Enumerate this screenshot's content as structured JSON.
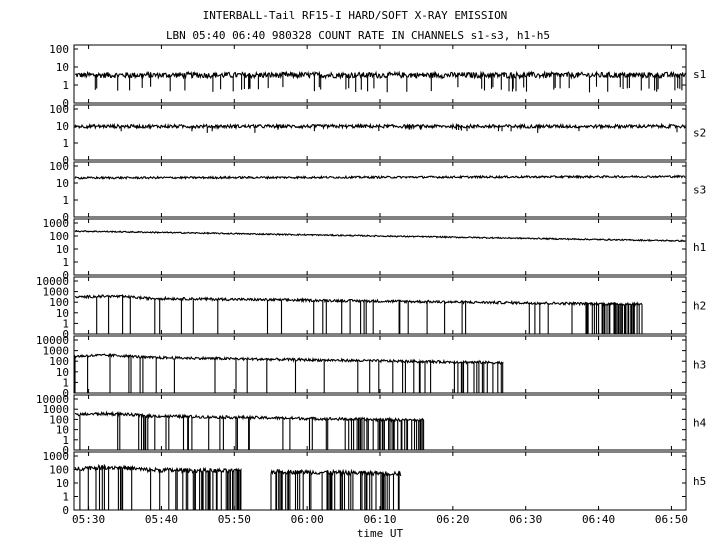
{
  "chart_data": {
    "type": "line",
    "title": "INTERBALL-Tail RF15-I HARD/SOFT X-RAY EMISSION",
    "subtitle": "LBN 05:40 06:40 980328  COUNT RATE IN CHANNELS s1-s3, h1-h5",
    "xlabel": "time UT",
    "x_ticks": [
      "05:30",
      "05:40",
      "05:50",
      "06:00",
      "06:10",
      "06:20",
      "06:30",
      "06:40",
      "06:50"
    ],
    "x_range_min": [
      328,
      412
    ],
    "y_scale": "log",
    "panels": [
      {
        "name": "s1",
        "y_ticks": [
          "100",
          "10",
          "1",
          "0"
        ],
        "y_decades": 2,
        "base_log": 0.55,
        "trend": [
          0.55,
          0.55
        ],
        "noise": 0.16,
        "spike_prob": 0.05,
        "spike_depth": 0.8,
        "end_min": 412,
        "gap": null,
        "dropout_from": null
      },
      {
        "name": "s2",
        "y_ticks": [
          "100",
          "10",
          "1",
          "0"
        ],
        "y_decades": 2,
        "base_log": 0.98,
        "trend": [
          0.98,
          0.98
        ],
        "noise": 0.1,
        "spike_prob": 0.02,
        "spike_depth": 0.3,
        "end_min": 412,
        "gap": null,
        "dropout_from": null
      },
      {
        "name": "s3",
        "y_ticks": [
          "100",
          "10",
          "1",
          "0"
        ],
        "y_decades": 2,
        "base_log": 1.3,
        "trend": [
          1.3,
          1.38
        ],
        "noise": 0.06,
        "spike_prob": 0.0,
        "spike_depth": 0,
        "end_min": 412,
        "gap": null,
        "dropout_from": null
      },
      {
        "name": "h1",
        "y_ticks": [
          "1000",
          "100",
          "10",
          "1",
          "0"
        ],
        "y_decades": 3,
        "base_log": 2.4,
        "trend": [
          2.38,
          1.62
        ],
        "noise": 0.05,
        "spike_prob": 0.0,
        "spike_depth": 0,
        "end_min": 412,
        "gap": null,
        "dropout_from": null
      },
      {
        "name": "h2",
        "y_ticks": [
          "10000",
          "1000",
          "100",
          "10",
          "1",
          "0"
        ],
        "y_decades": 4,
        "base_log": 2.5,
        "trend": [
          2.45,
          1.75
        ],
        "noise": 0.12,
        "spike_prob": 0.05,
        "spike_depth": 2.5,
        "end_min": 406,
        "gap": null,
        "dropout_from": 398
      },
      {
        "name": "h3",
        "y_ticks": [
          "10000",
          "1000",
          "100",
          "10",
          "1",
          "0"
        ],
        "y_decades": 4,
        "base_log": 2.45,
        "trend": [
          2.45,
          1.6
        ],
        "noise": 0.12,
        "spike_prob": 0.05,
        "spike_depth": 2.5,
        "end_min": 387,
        "gap": null,
        "dropout_from": 380
      },
      {
        "name": "h4",
        "y_ticks": [
          "10000",
          "1000",
          "100",
          "10",
          "1",
          "0"
        ],
        "y_decades": 4,
        "base_log": 2.4,
        "trend": [
          2.45,
          1.5
        ],
        "noise": 0.14,
        "spike_prob": 0.06,
        "spike_depth": 2.5,
        "end_min": 376,
        "gap": null,
        "dropout_from": 366
      },
      {
        "name": "h5",
        "y_ticks": [
          "1000",
          "100",
          "10",
          "1",
          "0"
        ],
        "y_decades": 3,
        "base_log": 2.0,
        "trend": [
          2.05,
          1.4
        ],
        "noise": 0.16,
        "spike_prob": 0.1,
        "spike_depth": 2.2,
        "end_min": 373,
        "gap": [
          351,
          355
        ],
        "dropout_from": 343
      }
    ],
    "grid": false,
    "legend": "none"
  }
}
